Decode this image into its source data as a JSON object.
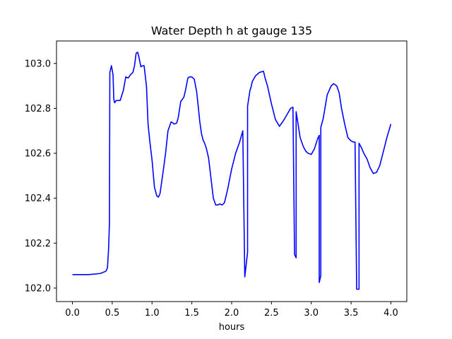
{
  "chart_data": {
    "type": "line",
    "title": "Water Depth h at gauge 135",
    "xlabel": "hours",
    "ylabel": "",
    "xlim": [
      -0.2,
      4.2
    ],
    "ylim": [
      101.94,
      103.1
    ],
    "xticks": [
      0.0,
      0.5,
      1.0,
      1.5,
      2.0,
      2.5,
      3.0,
      3.5,
      4.0
    ],
    "xtick_labels": [
      "0.0",
      "0.5",
      "1.0",
      "1.5",
      "2.0",
      "2.5",
      "3.0",
      "3.5",
      "4.0"
    ],
    "yticks": [
      102.0,
      102.2,
      102.4,
      102.6,
      102.8,
      103.0
    ],
    "ytick_labels": [
      "102.0",
      "102.2",
      "102.4",
      "102.6",
      "102.8",
      "103.0"
    ],
    "grid": false,
    "legend": "none",
    "series": [
      {
        "color": "#0000ff",
        "x": [
          0.0,
          0.2,
          0.35,
          0.42,
          0.44,
          0.455,
          0.465,
          0.47,
          0.47,
          0.49,
          0.51,
          0.52,
          0.53,
          0.55,
          0.6,
          0.64,
          0.67,
          0.7,
          0.73,
          0.76,
          0.78,
          0.8,
          0.82,
          0.84,
          0.86,
          0.88,
          0.9,
          0.93,
          0.95,
          0.97,
          1.0,
          1.03,
          1.06,
          1.08,
          1.1,
          1.12,
          1.14,
          1.17,
          1.2,
          1.24,
          1.28,
          1.31,
          1.33,
          1.36,
          1.4,
          1.42,
          1.45,
          1.47,
          1.5,
          1.53,
          1.56,
          1.58,
          1.6,
          1.62,
          1.64,
          1.66,
          1.68,
          1.71,
          1.74,
          1.77,
          1.8,
          1.83,
          1.85,
          1.88,
          1.91,
          1.95,
          2.0,
          2.05,
          2.1,
          2.14,
          2.165,
          2.165,
          2.2,
          2.2,
          2.23,
          2.24,
          2.26,
          2.3,
          2.35,
          2.4,
          2.42,
          2.45,
          2.5,
          2.55,
          2.6,
          2.65,
          2.7,
          2.74,
          2.77,
          2.79,
          2.79,
          2.81,
          2.81,
          2.83,
          2.86,
          2.9,
          2.93,
          2.96,
          3.0,
          3.04,
          3.08,
          3.1,
          3.1,
          3.12,
          3.12,
          3.15,
          3.2,
          3.25,
          3.28,
          3.32,
          3.35,
          3.38,
          3.42,
          3.46,
          3.5,
          3.53,
          3.55,
          3.57,
          3.57,
          3.6,
          3.6,
          3.63,
          3.66,
          3.7,
          3.74,
          3.78,
          3.82,
          3.86,
          3.9,
          3.95,
          4.0
        ],
        "y": [
          102.06,
          102.06,
          102.065,
          102.075,
          102.09,
          102.18,
          102.29,
          102.96,
          102.96,
          102.99,
          102.95,
          102.84,
          102.825,
          102.835,
          102.835,
          102.88,
          102.94,
          102.935,
          102.95,
          102.96,
          102.99,
          103.045,
          103.05,
          103.02,
          102.985,
          102.99,
          102.99,
          102.9,
          102.73,
          102.66,
          102.57,
          102.45,
          102.41,
          102.405,
          102.42,
          102.47,
          102.52,
          102.6,
          102.7,
          102.74,
          102.73,
          102.735,
          102.76,
          102.83,
          102.85,
          102.88,
          102.935,
          102.94,
          102.94,
          102.93,
          102.875,
          102.81,
          102.74,
          102.69,
          102.66,
          102.645,
          102.625,
          102.58,
          102.49,
          102.4,
          102.37,
          102.37,
          102.375,
          102.37,
          102.38,
          102.44,
          102.53,
          102.6,
          102.65,
          102.7,
          102.05,
          102.05,
          102.16,
          102.81,
          102.88,
          102.89,
          102.92,
          102.945,
          102.96,
          102.965,
          102.935,
          102.9,
          102.82,
          102.75,
          102.72,
          102.745,
          102.775,
          102.8,
          102.805,
          102.15,
          102.15,
          102.135,
          102.785,
          102.74,
          102.67,
          102.63,
          102.61,
          102.6,
          102.595,
          102.62,
          102.665,
          102.68,
          102.025,
          102.055,
          102.715,
          102.755,
          102.86,
          102.9,
          102.91,
          102.9,
          102.87,
          102.8,
          102.73,
          102.67,
          102.655,
          102.65,
          102.65,
          102.0,
          101.995,
          101.995,
          102.645,
          102.625,
          102.6,
          102.575,
          102.535,
          102.51,
          102.515,
          102.545,
          102.6,
          102.67,
          102.73
        ]
      }
    ]
  }
}
